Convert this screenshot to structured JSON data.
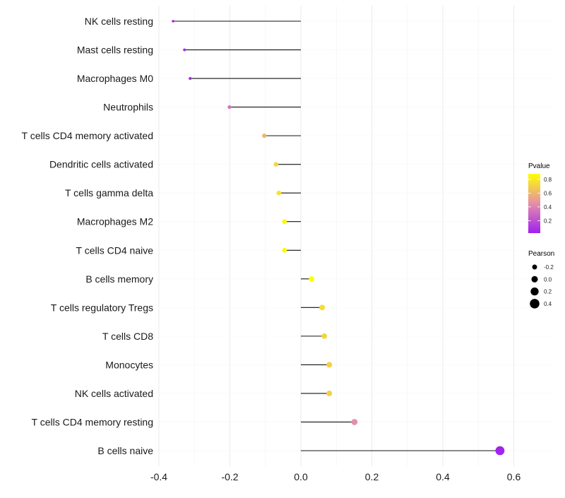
{
  "chart_data": {
    "type": "scatter",
    "subtype": "lollipop",
    "title": "",
    "xlabel": "",
    "ylabel": "",
    "xlim": [
      -0.42,
      0.63
    ],
    "xticks": [
      -0.4,
      -0.2,
      0.0,
      0.2,
      0.4,
      0.6
    ],
    "xtick_labels": [
      "-0.4",
      "-0.2",
      "0.0",
      "0.2",
      "0.4",
      "0.6"
    ],
    "grid": true,
    "categories": [
      "NK cells resting",
      "Mast cells resting",
      "Macrophages M0",
      "Neutrophils",
      "T cells CD4 memory activated",
      "Dendritic cells activated",
      "T cells gamma delta",
      "Macrophages M2",
      "T cells CD4 naive",
      "B cells memory",
      "T cells regulatory  Tregs",
      "T cells CD8",
      "Monocytes",
      "NK cells activated",
      "T cells CD4 memory resting",
      "B cells naive"
    ],
    "pearson": [
      -0.36,
      -0.328,
      -0.312,
      -0.201,
      -0.103,
      -0.07,
      -0.062,
      -0.046,
      -0.046,
      0.03,
      0.06,
      0.066,
      0.08,
      0.08,
      0.151,
      0.561
    ],
    "pvalue": [
      0.02,
      0.05,
      0.07,
      0.33,
      0.6,
      0.72,
      0.76,
      0.85,
      0.86,
      0.9,
      0.74,
      0.72,
      0.7,
      0.7,
      0.45,
      0.03
    ],
    "legend": {
      "placement": "right",
      "color": {
        "title": "Pvalue",
        "labels": [
          "0.8",
          "0.6",
          "0.4",
          "0.2"
        ],
        "values": [
          0.8,
          0.6,
          0.4,
          0.2
        ],
        "low_color": "#A020F0",
        "mid_color": "#E58FA8",
        "high_color": "#FFFF00"
      },
      "size": {
        "title": "Pearson",
        "labels": [
          "-0.2",
          "0.0",
          "0.2",
          "0.4"
        ],
        "values": [
          -0.2,
          0.0,
          0.2,
          0.4
        ]
      }
    }
  }
}
